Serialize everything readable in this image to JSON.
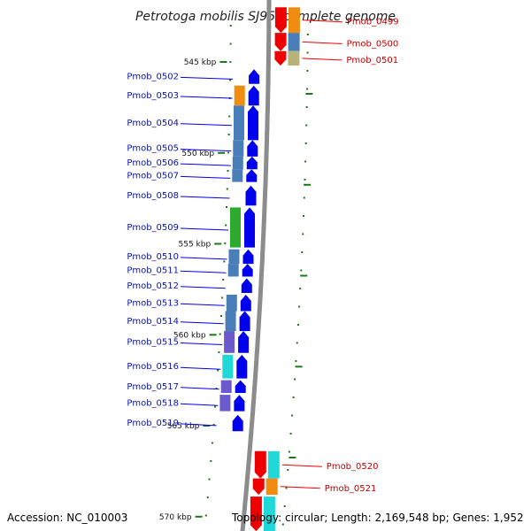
{
  "title": "Petrotoga mobilis SJ95, complete genome",
  "accession": "Accession: NC_010003",
  "topology": "Topology: circular; Length: 2,169,548 bp; Genes: 1,952",
  "colors": {
    "forward_strand": "#0000ee",
    "reverse_strand": "#ee0000",
    "backbone": "#8c8c8c",
    "tick": "#1a7a1a",
    "cog_orange": "#f08c10",
    "cog_steelblue": "#4a7eb8",
    "cog_green": "#2eaa2e",
    "cog_purple": "#6a5acd",
    "cog_cyan": "#20d8d8",
    "cog_khaki": "#b8b478"
  },
  "kbp_ticks": [
    {
      "kbp": 545,
      "label": "545 kbp"
    },
    {
      "kbp": 550,
      "label": "550 kbp"
    },
    {
      "kbp": 555,
      "label": "555 kbp"
    },
    {
      "kbp": 560,
      "label": "560 kbp"
    },
    {
      "kbp": 565,
      "label": "565 kbp"
    },
    {
      "kbp": 570,
      "label": "570 kbp"
    }
  ],
  "genes": [
    {
      "name": "Pmob_0499",
      "strand": "reverse",
      "cog": "cog_orange",
      "start_kbp": 542.0,
      "end_kbp": 543.4
    },
    {
      "name": "Pmob_0500",
      "strand": "reverse",
      "cog": "cog_steelblue",
      "start_kbp": 543.4,
      "end_kbp": 544.4
    },
    {
      "name": "Pmob_0501",
      "strand": "reverse",
      "cog": "cog_khaki",
      "start_kbp": 544.4,
      "end_kbp": 545.2
    },
    {
      "name": "Pmob_0502",
      "strand": "forward",
      "cog": "",
      "start_kbp": 545.4,
      "end_kbp": 546.2
    },
    {
      "name": "Pmob_0503",
      "strand": "forward",
      "cog": "cog_orange",
      "start_kbp": 546.3,
      "end_kbp": 547.4
    },
    {
      "name": "Pmob_0504",
      "strand": "forward",
      "cog": "cog_steelblue",
      "start_kbp": 547.4,
      "end_kbp": 549.3
    },
    {
      "name": "Pmob_0505",
      "strand": "forward",
      "cog": "cog_steelblue",
      "start_kbp": 549.3,
      "end_kbp": 550.2
    },
    {
      "name": "Pmob_0506",
      "strand": "forward",
      "cog": "cog_steelblue",
      "start_kbp": 550.2,
      "end_kbp": 550.9
    },
    {
      "name": "Pmob_0507",
      "strand": "forward",
      "cog": "cog_steelblue",
      "start_kbp": 550.9,
      "end_kbp": 551.6
    },
    {
      "name": "Pmob_0508",
      "strand": "forward",
      "cog": "",
      "start_kbp": 551.8,
      "end_kbp": 552.9
    },
    {
      "name": "Pmob_0509",
      "strand": "forward",
      "cog": "cog_green",
      "start_kbp": 553.0,
      "end_kbp": 555.2
    },
    {
      "name": "Pmob_0510",
      "strand": "forward",
      "cog": "cog_steelblue",
      "start_kbp": 555.3,
      "end_kbp": 556.1
    },
    {
      "name": "Pmob_0511",
      "strand": "forward",
      "cog": "cog_steelblue",
      "start_kbp": 556.1,
      "end_kbp": 556.8
    },
    {
      "name": "Pmob_0512",
      "strand": "forward",
      "cog": "",
      "start_kbp": 556.9,
      "end_kbp": 557.7
    },
    {
      "name": "Pmob_0513",
      "strand": "forward",
      "cog": "cog_steelblue",
      "start_kbp": 557.8,
      "end_kbp": 558.7
    },
    {
      "name": "Pmob_0514",
      "strand": "forward",
      "cog": "cog_steelblue",
      "start_kbp": 558.7,
      "end_kbp": 559.8
    },
    {
      "name": "Pmob_0515",
      "strand": "forward",
      "cog": "cog_purple",
      "start_kbp": 559.8,
      "end_kbp": 561.0
    },
    {
      "name": "Pmob_0516",
      "strand": "forward",
      "cog": "cog_cyan",
      "start_kbp": 561.1,
      "end_kbp": 562.4
    },
    {
      "name": "Pmob_0517",
      "strand": "forward",
      "cog": "cog_purple",
      "start_kbp": 562.5,
      "end_kbp": 563.2
    },
    {
      "name": "Pmob_0518",
      "strand": "forward",
      "cog": "cog_purple",
      "start_kbp": 563.3,
      "end_kbp": 564.2
    },
    {
      "name": "Pmob_0519",
      "strand": "forward",
      "cog": "",
      "start_kbp": 564.4,
      "end_kbp": 565.3
    },
    {
      "name": "Pmob_0520",
      "strand": "reverse",
      "cog": "cog_cyan",
      "start_kbp": 566.4,
      "end_kbp": 567.9
    },
    {
      "name": "Pmob_0521",
      "strand": "reverse",
      "cog": "cog_orange",
      "start_kbp": 567.9,
      "end_kbp": 568.8
    },
    {
      "name": "",
      "strand": "reverse",
      "cog": "cog_cyan",
      "start_kbp": 568.9,
      "end_kbp": 570.8
    }
  ]
}
